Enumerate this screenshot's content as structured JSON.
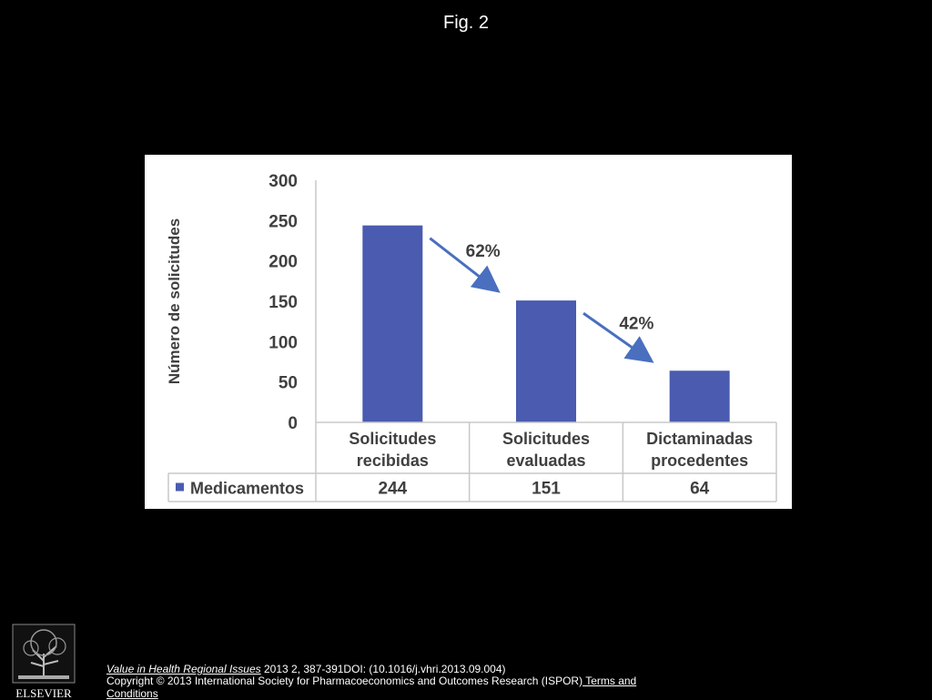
{
  "figure_label": "Fig. 2",
  "chart_data": {
    "type": "bar",
    "categories": [
      "Solicitudes recibidas",
      "Solicitudes evaluadas",
      "Dictaminadas procedentes"
    ],
    "category_lines": [
      [
        "Solicitudes",
        "recibidas"
      ],
      [
        "Solicitudes",
        "evaluadas"
      ],
      [
        "Dictaminadas",
        "procedentes"
      ]
    ],
    "series": [
      {
        "name": "Medicamentos",
        "values": [
          244,
          151,
          64
        ],
        "color": "#4A5BB0"
      }
    ],
    "ylabel": "Número de solicitudes",
    "ylim": [
      0,
      300
    ],
    "yticks": [
      0,
      50,
      100,
      150,
      200,
      250,
      300
    ],
    "data_table": true,
    "annotations": [
      {
        "text": "62%",
        "from_category": 0,
        "to_category": 1
      },
      {
        "text": "42%",
        "from_category": 1,
        "to_category": 2
      }
    ],
    "grid": false,
    "arrow_color": "#4A6FBF",
    "text_color": "#404040"
  },
  "footer": {
    "journal": "Value in Health Regional Issues",
    "citation_rest": " 2013 2, 387-391DOI: (10.1016/j.vhri.2013.09.004)",
    "copyright": "Copyright © 2013 International Society for Pharmacoeconomics and Outcomes Research (ISPOR)",
    "terms_link": " Terms and Conditions",
    "publisher": "ELSEVIER"
  }
}
